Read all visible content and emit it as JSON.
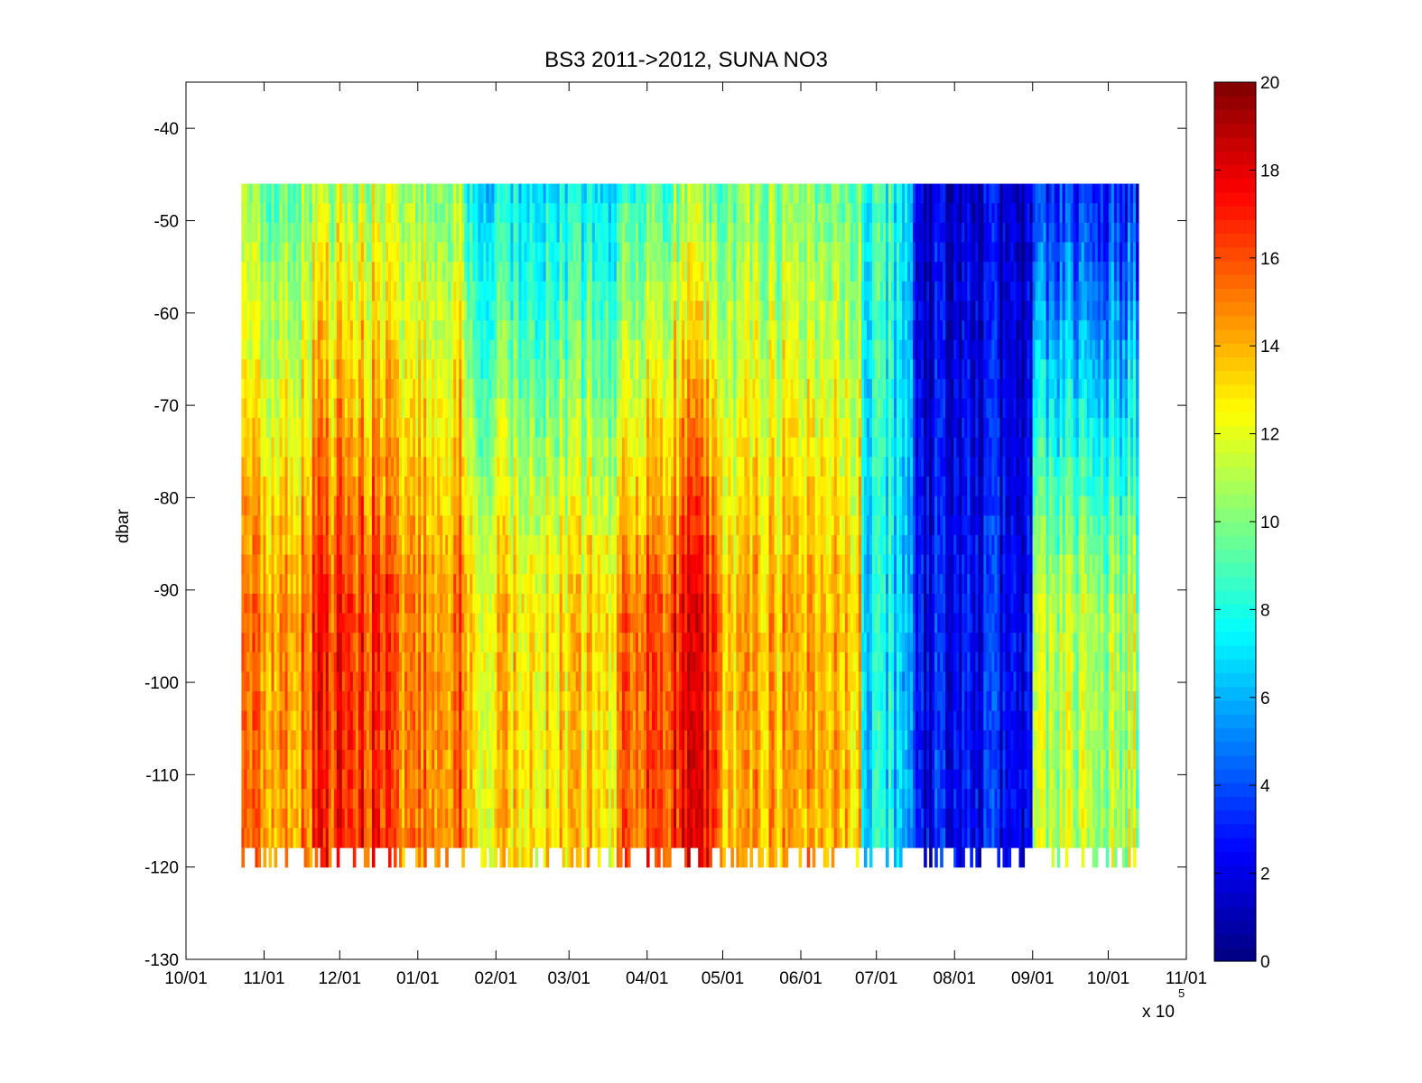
{
  "chart_data": {
    "type": "heatmap",
    "title": "BS3 2011->2012,  SUNA NO3",
    "xlabel": "",
    "ylabel": "dbar",
    "x_multiplier_label": "x 10",
    "x_multiplier_exponent": "5",
    "x_ticks": [
      "10/01",
      "11/01",
      "12/01",
      "01/01",
      "02/01",
      "03/01",
      "04/01",
      "05/01",
      "06/01",
      "07/01",
      "08/01",
      "09/01",
      "10/01",
      "11/01"
    ],
    "xlim": [
      "2011-10-01",
      "2012-11-01"
    ],
    "y_ticks": [
      "-40",
      "-50",
      "-60",
      "-70",
      "-80",
      "-90",
      "-100",
      "-110",
      "-120",
      "-130"
    ],
    "ylim": [
      -130,
      -35
    ],
    "colorbar": {
      "colormap": "jet",
      "range": [
        0,
        20
      ],
      "ticks": [
        "0",
        "2",
        "4",
        "6",
        "8",
        "10",
        "12",
        "14",
        "16",
        "18",
        "20"
      ]
    },
    "grid": false,
    "data_start": "2011-10-23",
    "data_end": "2012-10-13",
    "depth_range": [
      -120,
      -46
    ],
    "approx_no3_by_period": [
      {
        "start": "2011-10-23",
        "end": "2011-11-20",
        "near_surface": 10,
        "deep": 15
      },
      {
        "start": "2011-11-20",
        "end": "2011-12-20",
        "near_surface": 11,
        "deep": 16.5
      },
      {
        "start": "2011-12-20",
        "end": "2012-01-20",
        "near_surface": 11,
        "deep": 15.5
      },
      {
        "start": "2012-01-20",
        "end": "2012-03-20",
        "near_surface": 7,
        "deep": 13
      },
      {
        "start": "2012-03-20",
        "end": "2012-04-01",
        "near_surface": 9,
        "deep": 16
      },
      {
        "start": "2012-04-10",
        "end": "2012-04-25",
        "near_surface": 10,
        "deep": 17
      },
      {
        "start": "2012-05-01",
        "end": "2012-06-20",
        "near_surface": 10,
        "deep": 14
      },
      {
        "start": "2012-06-25",
        "end": "2012-07-15",
        "near_surface": 8,
        "deep": 7
      },
      {
        "start": "2012-07-15",
        "end": "2012-09-01",
        "near_surface": 1.5,
        "deep": 2.5
      },
      {
        "start": "2012-09-01",
        "end": "2012-10-13",
        "near_surface": 3,
        "deep": 11
      }
    ]
  }
}
